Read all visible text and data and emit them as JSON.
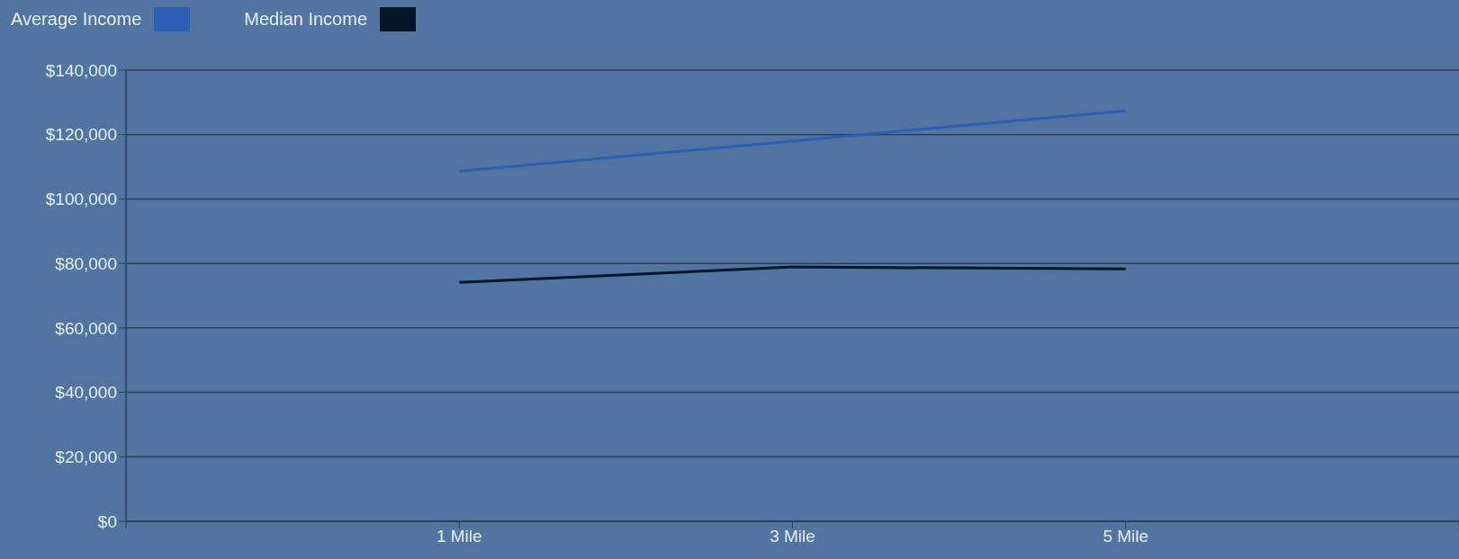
{
  "chart_data": {
    "type": "line",
    "categories": [
      null,
      "1 Mile",
      "3 Mile",
      "5 Mile",
      null
    ],
    "series": [
      {
        "name": "Average Income",
        "color": "#2a5fb5",
        "values": [
          null,
          108600,
          118000,
          127400,
          null
        ]
      },
      {
        "name": "Median Income",
        "color": "#021627",
        "values": [
          null,
          74100,
          78900,
          78300,
          null
        ]
      }
    ],
    "ylim": [
      0,
      140000
    ],
    "yticks": [
      {
        "value": 0,
        "label": "$0"
      },
      {
        "value": 20000,
        "label": "$20,000"
      },
      {
        "value": 40000,
        "label": "$40,000"
      },
      {
        "value": 60000,
        "label": "$60,000"
      },
      {
        "value": 80000,
        "label": "$80,000"
      },
      {
        "value": 100000,
        "label": "$100,000"
      },
      {
        "value": 120000,
        "label": "$120,000"
      },
      {
        "value": 140000,
        "label": "$140,000"
      }
    ],
    "grid": "y",
    "legend": "top left",
    "marker": "none",
    "line_style": "solid"
  }
}
